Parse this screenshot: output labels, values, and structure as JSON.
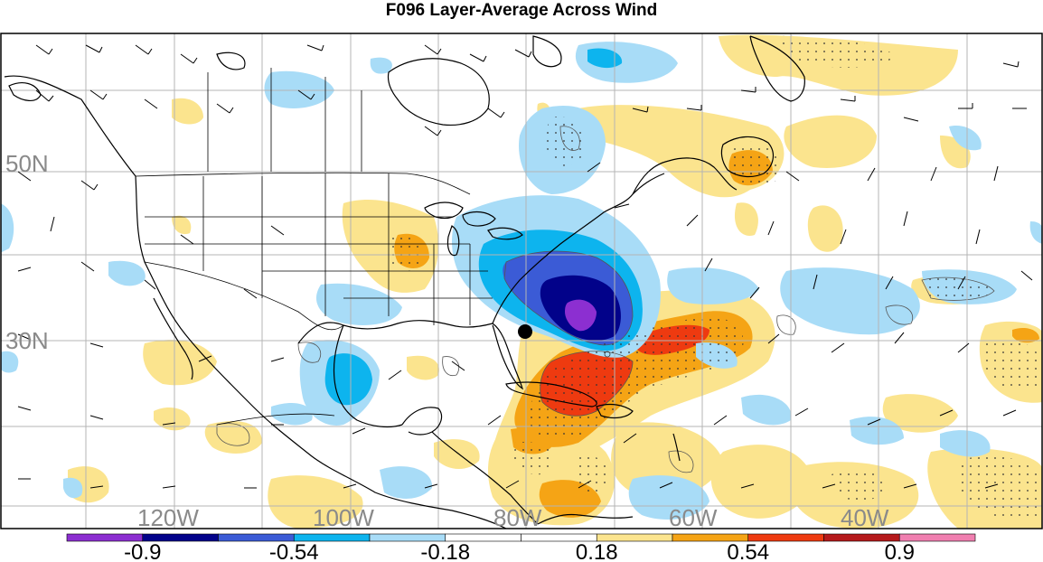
{
  "title": "F096 Layer-Average Across Wind",
  "map": {
    "lat_labels": [
      {
        "text": "50N",
        "lat": 50
      },
      {
        "text": "30N",
        "lat": 30
      }
    ],
    "lon_labels": [
      {
        "text": "120W",
        "lon": -120
      },
      {
        "text": "100W",
        "lon": -100
      },
      {
        "text": "80W",
        "lon": -80
      },
      {
        "text": "60W",
        "lon": -60
      },
      {
        "text": "40W",
        "lon": -40
      }
    ],
    "storm_marker": "black-dot"
  },
  "colorbar": {
    "colors": [
      "#8c2fd1",
      "#02028a",
      "#3b5bd6",
      "#0db4ee",
      "#a8dcf7",
      "#ffffff",
      "#ffffff",
      "#fbe48e",
      "#f5a415",
      "#ee3a10",
      "#b5191b",
      "#f07fb0"
    ],
    "labels": [
      {
        "text": "-0.9",
        "index": 1
      },
      {
        "text": "-0.54",
        "index": 3
      },
      {
        "text": "-0.18",
        "index": 5
      },
      {
        "text": "0.18",
        "index": 7
      },
      {
        "text": "0.54",
        "index": 9
      },
      {
        "text": "0.9",
        "index": 11
      }
    ]
  }
}
